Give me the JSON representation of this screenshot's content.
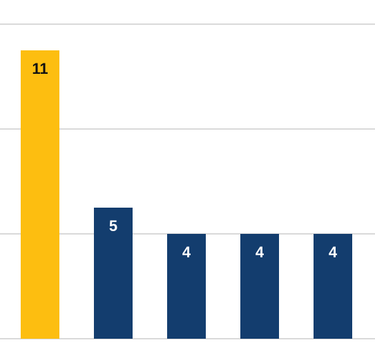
{
  "chart_data": {
    "type": "bar",
    "title": "",
    "xlabel": "",
    "ylabel": "",
    "categories": [
      "",
      "",
      "",
      "",
      ""
    ],
    "values": [
      11,
      5,
      4,
      4,
      4
    ],
    "ylim": [
      0,
      12
    ],
    "gridlines": [
      4,
      8,
      12
    ],
    "grid": true,
    "legend": "none",
    "data_labels": [
      "11",
      "5",
      "4",
      "4",
      "4"
    ],
    "colors": {
      "highlight": "#FDBE10",
      "default": "#133D6E",
      "label_on_highlight": "#111111",
      "label_on_default": "#ffffff",
      "gridline": "#d9d9d9"
    },
    "highlight_index": 0
  }
}
